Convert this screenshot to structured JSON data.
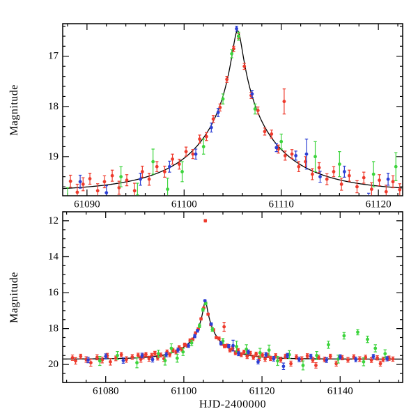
{
  "chart_data": {
    "type": "scatter",
    "title": "",
    "xlabel": "HJD-2400000",
    "ylabel": "Magnitude",
    "y_axis_inverted": true,
    "legend": "none",
    "grid": false,
    "model": {
      "kind": "paczynski-microlensing-fit",
      "t0": 61105.5,
      "tE": 9.0,
      "u0": 0.052,
      "baseline_mag": 19.7,
      "curve_color": "#000000"
    },
    "panels": [
      {
        "name": "zoom-panel",
        "x_range": [
          61087.5,
          61122.5
        ],
        "y_range": [
          16.35,
          19.78
        ],
        "x_major_ticks": [
          61090,
          61100,
          61110,
          61120
        ],
        "x_minor_step": 2,
        "y_major_ticks": [
          17,
          18,
          19
        ],
        "y_minor_step": 0.2,
        "show_xlabel": false
      },
      {
        "name": "full-panel",
        "x_range": [
          61069,
          61156
        ],
        "y_range": [
          11.5,
          21.0
        ],
        "x_major_ticks": [
          61080,
          61100,
          61120,
          61140
        ],
        "x_minor_step": 5,
        "y_major_ticks": [
          12,
          14,
          16,
          18,
          20
        ],
        "y_minor_step": 0.5,
        "show_xlabel": true
      }
    ],
    "series": [
      {
        "name": "red-observatory",
        "color": "#ee3a2c",
        "points": [
          [
            61071.5,
            19.62,
            0.15
          ],
          [
            61072.3,
            19.8,
            0.18
          ],
          [
            61073.6,
            19.55,
            0.12
          ],
          [
            61075.0,
            19.72,
            0.15
          ],
          [
            61076.2,
            19.9,
            0.2
          ],
          [
            61077.8,
            19.6,
            0.14
          ],
          [
            61079.1,
            19.75,
            0.16
          ],
          [
            61080.4,
            19.5,
            0.12
          ],
          [
            61081.2,
            19.85,
            0.18
          ],
          [
            61082.6,
            19.66,
            0.13
          ],
          [
            61084.0,
            19.45,
            0.12
          ],
          [
            61085.3,
            19.72,
            0.15
          ],
          [
            61086.8,
            19.58,
            0.13
          ],
          [
            61088.3,
            19.49,
            0.12
          ],
          [
            61089.0,
            19.71,
            0.16
          ],
          [
            61089.6,
            19.55,
            0.13
          ],
          [
            61090.3,
            19.44,
            0.11
          ],
          [
            61091.1,
            19.68,
            0.14
          ],
          [
            61091.8,
            19.5,
            0.12
          ],
          [
            61092.6,
            19.38,
            0.11
          ],
          [
            61093.3,
            19.62,
            0.13
          ],
          [
            61094.1,
            19.47,
            0.11
          ],
          [
            61094.9,
            19.68,
            0.15
          ],
          [
            61095.7,
            19.3,
            0.11
          ],
          [
            61096.4,
            19.45,
            0.12
          ],
          [
            61097.2,
            19.2,
            0.1
          ],
          [
            61098.0,
            19.3,
            0.11
          ],
          [
            61098.8,
            19.05,
            0.1
          ],
          [
            61099.5,
            19.15,
            0.1
          ],
          [
            61100.2,
            18.9,
            0.09
          ],
          [
            61100.9,
            18.95,
            0.09
          ],
          [
            61101.6,
            18.65,
            0.08
          ],
          [
            61102.3,
            18.6,
            0.08
          ],
          [
            61103.0,
            18.25,
            0.07
          ],
          [
            61103.7,
            18.02,
            0.07
          ],
          [
            61104.4,
            17.46,
            0.06
          ],
          [
            61105.1,
            16.85,
            0.05
          ],
          [
            61105.5,
            12.0,
            0.07
          ],
          [
            61105.6,
            16.6,
            0.05
          ],
          [
            61106.2,
            17.2,
            0.06
          ],
          [
            61106.9,
            17.78,
            0.06
          ],
          [
            61107.6,
            18.08,
            0.07
          ],
          [
            61108.3,
            18.5,
            0.07
          ],
          [
            61109.0,
            18.55,
            0.08
          ],
          [
            61109.7,
            18.85,
            0.08
          ],
          [
            61110.3,
            17.9,
            0.25
          ],
          [
            61110.4,
            18.98,
            0.09
          ],
          [
            61111.1,
            18.95,
            0.09
          ],
          [
            61111.8,
            19.2,
            0.1
          ],
          [
            61112.5,
            19.1,
            0.1
          ],
          [
            61113.2,
            19.35,
            0.11
          ],
          [
            61113.9,
            19.22,
            0.1
          ],
          [
            61114.7,
            19.45,
            0.11
          ],
          [
            61115.4,
            19.3,
            0.1
          ],
          [
            61116.2,
            19.55,
            0.12
          ],
          [
            61117.0,
            19.38,
            0.11
          ],
          [
            61117.8,
            19.6,
            0.12
          ],
          [
            61118.5,
            19.42,
            0.11
          ],
          [
            61119.3,
            19.65,
            0.13
          ],
          [
            61120.1,
            19.47,
            0.11
          ],
          [
            61120.8,
            19.7,
            0.13
          ],
          [
            61121.5,
            19.5,
            0.12
          ],
          [
            61122.2,
            19.66,
            0.12
          ],
          [
            61123.5,
            19.52,
            0.12
          ],
          [
            61124.8,
            19.73,
            0.14
          ],
          [
            61126.0,
            19.55,
            0.12
          ],
          [
            61127.4,
            19.95,
            0.14
          ],
          [
            61128.8,
            19.58,
            0.12
          ],
          [
            61130.2,
            19.7,
            0.13
          ],
          [
            61131.6,
            19.52,
            0.12
          ],
          [
            61133.0,
            19.75,
            0.13
          ],
          [
            61133.8,
            20.05,
            0.15
          ],
          [
            61134.5,
            19.6,
            0.12
          ],
          [
            61136.0,
            19.72,
            0.13
          ],
          [
            61137.5,
            19.55,
            0.12
          ],
          [
            61139.0,
            19.95,
            0.14
          ],
          [
            61140.5,
            19.62,
            0.12
          ],
          [
            61142.0,
            19.74,
            0.13
          ],
          [
            61143.5,
            19.58,
            0.12
          ],
          [
            61145.0,
            19.7,
            0.13
          ],
          [
            61146.5,
            19.6,
            0.12
          ],
          [
            61148.0,
            19.75,
            0.13
          ],
          [
            61149.5,
            19.63,
            0.12
          ],
          [
            61150.3,
            19.95,
            0.14
          ],
          [
            61151.0,
            19.72,
            0.13
          ],
          [
            61152.5,
            19.65,
            0.12
          ],
          [
            61153.5,
            19.7,
            0.12
          ]
        ]
      },
      {
        "name": "green-observatory",
        "color": "#3cd43c",
        "points": [
          [
            61078.5,
            19.8,
            0.25
          ],
          [
            61083.0,
            19.5,
            0.22
          ],
          [
            61088.0,
            19.9,
            0.28
          ],
          [
            61093.5,
            19.4,
            0.2
          ],
          [
            61095.2,
            19.78,
            0.25
          ],
          [
            61096.8,
            19.1,
            0.25
          ],
          [
            61098.3,
            19.65,
            0.22
          ],
          [
            61099.8,
            19.3,
            0.2
          ],
          [
            61102.0,
            18.8,
            0.15
          ],
          [
            61104.0,
            17.85,
            0.1
          ],
          [
            61104.9,
            16.95,
            0.08
          ],
          [
            61105.6,
            16.6,
            0.08
          ],
          [
            61107.3,
            18.05,
            0.1
          ],
          [
            61110.0,
            18.7,
            0.15
          ],
          [
            61113.5,
            19.0,
            0.3
          ],
          [
            61116.0,
            19.15,
            0.25
          ],
          [
            61119.5,
            19.35,
            0.25
          ],
          [
            61121.8,
            19.2,
            0.28
          ],
          [
            61124.0,
            19.8,
            0.25
          ],
          [
            61127.0,
            19.45,
            0.22
          ],
          [
            61130.5,
            20.05,
            0.25
          ],
          [
            61134.0,
            19.5,
            0.22
          ],
          [
            61137.0,
            18.9,
            0.2
          ],
          [
            61139.5,
            19.7,
            0.22
          ],
          [
            61141.0,
            18.4,
            0.18
          ],
          [
            61144.5,
            18.2,
            0.15
          ],
          [
            61146.0,
            19.85,
            0.22
          ],
          [
            61147.0,
            18.6,
            0.18
          ],
          [
            61149.0,
            19.1,
            0.2
          ],
          [
            61151.5,
            19.4,
            0.22
          ]
        ]
      },
      {
        "name": "blue-observatory",
        "color": "#2d3fd4",
        "points": [
          [
            61075.5,
            19.75,
            0.15
          ],
          [
            61080.0,
            19.55,
            0.14
          ],
          [
            61084.5,
            19.78,
            0.15
          ],
          [
            61089.3,
            19.5,
            0.13
          ],
          [
            61092.0,
            19.72,
            0.14
          ],
          [
            61095.5,
            19.45,
            0.12
          ],
          [
            61098.5,
            19.2,
            0.11
          ],
          [
            61101.2,
            18.95,
            0.1
          ],
          [
            61102.8,
            18.42,
            0.09
          ],
          [
            61103.5,
            18.12,
            0.08
          ],
          [
            61105.4,
            16.45,
            0.05
          ],
          [
            61107.0,
            17.75,
            0.07
          ],
          [
            61109.5,
            18.82,
            0.08
          ],
          [
            61111.5,
            18.98,
            0.09
          ],
          [
            61112.6,
            18.95,
            0.3
          ],
          [
            61114.0,
            19.4,
            0.11
          ],
          [
            61116.5,
            19.3,
            0.11
          ],
          [
            61119.0,
            19.85,
            0.12
          ],
          [
            61121.0,
            19.45,
            0.12
          ],
          [
            61123.0,
            19.68,
            0.13
          ],
          [
            61125.5,
            20.1,
            0.18
          ],
          [
            61126.5,
            19.5,
            0.12
          ],
          [
            61129.5,
            19.72,
            0.13
          ],
          [
            61132.5,
            19.55,
            0.12
          ],
          [
            61136.5,
            19.75,
            0.13
          ],
          [
            61140.0,
            19.58,
            0.12
          ],
          [
            61144.0,
            19.72,
            0.13
          ],
          [
            61148.5,
            19.56,
            0.12
          ],
          [
            61152.0,
            19.68,
            0.12
          ]
        ]
      }
    ]
  }
}
